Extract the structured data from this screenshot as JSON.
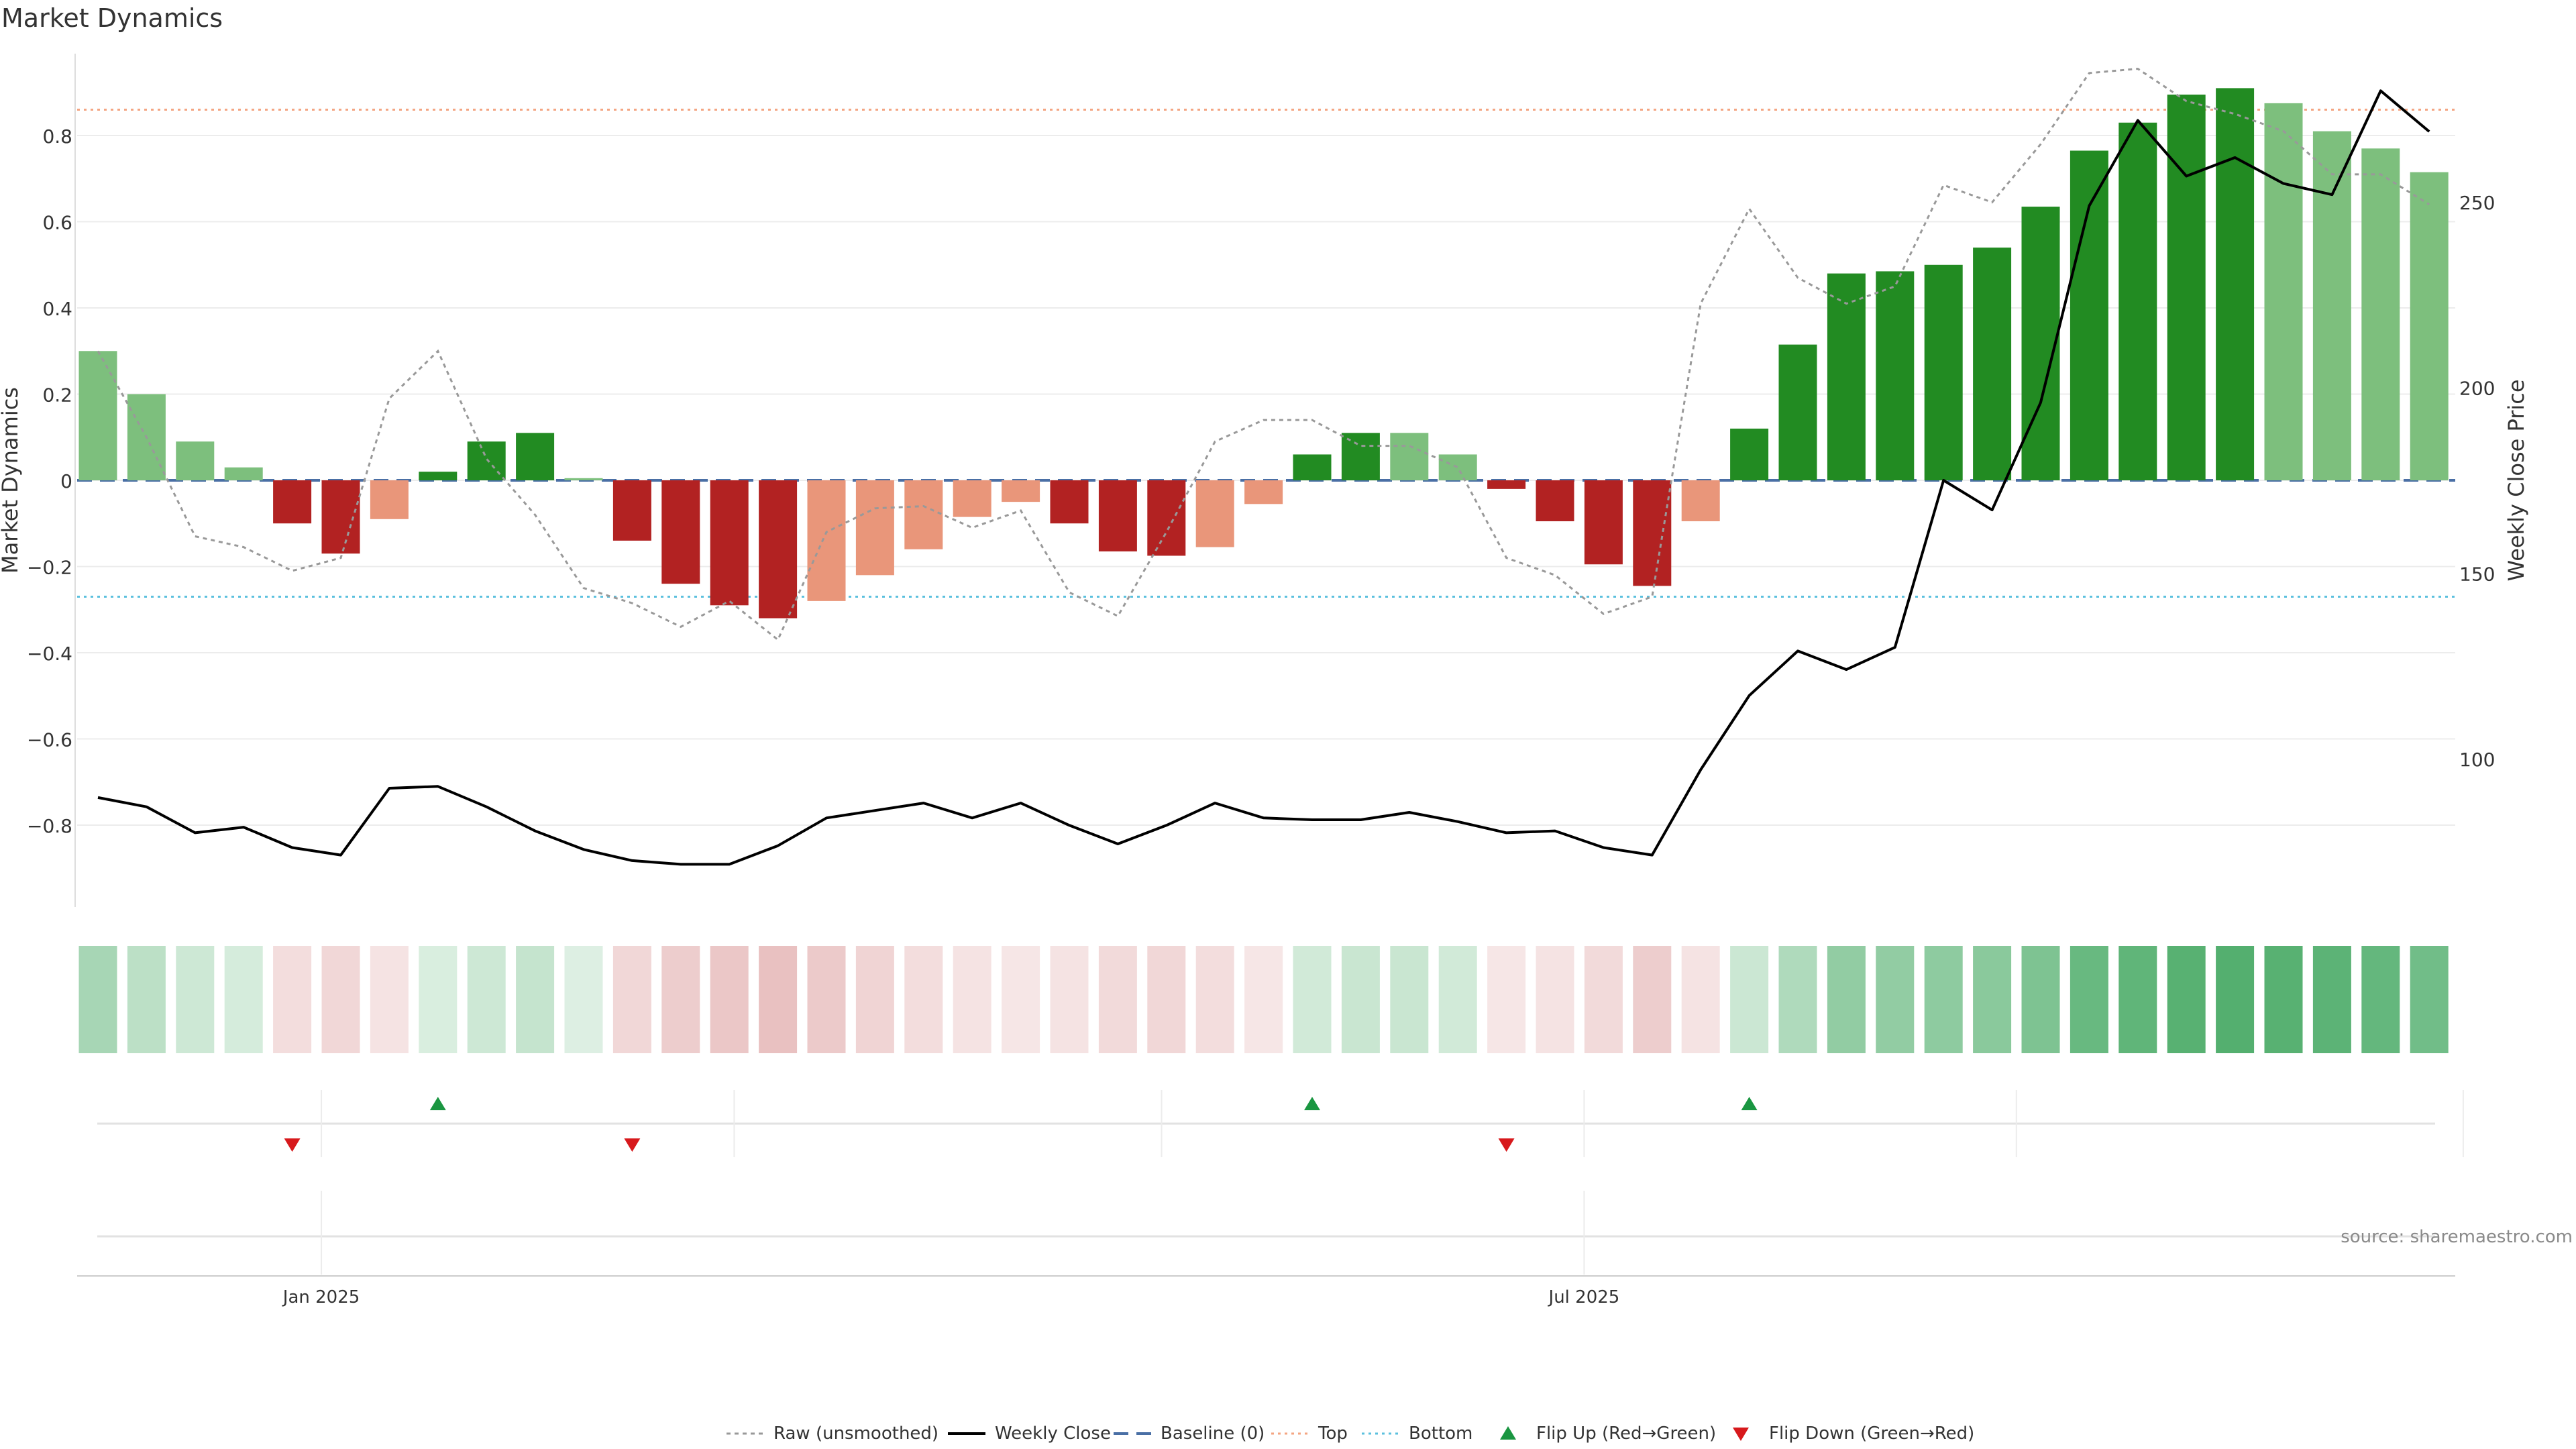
{
  "chart_data": {
    "type": "bar",
    "title": "Market Dynamics",
    "ylabel": "Market Dynamics",
    "y2label": "Weekly Close Price",
    "ylim": [
      -0.99,
      0.99
    ],
    "y2lim": [
      60,
      290
    ],
    "y_ticks": [
      -0.8,
      -0.6,
      -0.4,
      -0.2,
      0,
      0.2,
      0.4,
      0.6,
      0.8
    ],
    "y_tick_labels": [
      "−0.8",
      "−0.6",
      "−0.4",
      "−0.2",
      "0",
      "0.2",
      "0.4",
      "0.6",
      "0.8"
    ],
    "y2_ticks": [
      100,
      150,
      200,
      250
    ],
    "y2_tick_labels": [
      "100",
      "150",
      "200",
      "250"
    ],
    "x_tick_labels": [
      {
        "label": "Jan 2025",
        "week": 4.6
      },
      {
        "label": "Jul 2025",
        "week": 30.6
      }
    ],
    "x_minor_grid_weeks": [
      13.1,
      21.9,
      39.5,
      48.7
    ],
    "top_line": 0.86,
    "bottom_line": -0.27,
    "weeks": [
      0,
      1,
      2,
      3,
      4,
      5,
      6,
      7,
      8,
      9,
      10,
      11,
      12,
      13,
      14,
      15,
      16,
      17,
      18,
      19,
      20,
      21,
      22,
      23,
      24,
      25,
      26,
      27,
      28,
      29,
      30,
      31,
      32,
      33,
      34,
      35,
      36,
      37,
      38,
      39,
      40,
      41,
      42,
      43,
      44,
      45,
      46,
      47,
      48
    ],
    "smoothed": [
      0.3,
      0.2,
      0.09,
      0.03,
      -0.1,
      -0.17,
      -0.09,
      0.02,
      0.09,
      0.11,
      0.005,
      -0.14,
      -0.24,
      -0.29,
      -0.32,
      -0.28,
      -0.22,
      -0.16,
      -0.085,
      -0.05,
      -0.1,
      -0.165,
      -0.175,
      -0.155,
      -0.055,
      0.06,
      0.11,
      0.11,
      0.06,
      -0.02,
      -0.095,
      -0.195,
      -0.245,
      -0.095,
      0.12,
      0.315,
      0.48,
      0.485,
      0.5,
      0.54,
      0.635,
      0.765,
      0.83,
      0.895,
      0.91,
      0.875,
      0.81,
      0.77,
      0.715
    ],
    "raw": [
      0.3,
      0.1,
      -0.13,
      -0.155,
      -0.21,
      -0.18,
      0.19,
      0.3,
      0.05,
      -0.08,
      -0.25,
      -0.285,
      -0.34,
      -0.28,
      -0.37,
      -0.12,
      -0.065,
      -0.06,
      -0.11,
      -0.07,
      -0.26,
      -0.315,
      -0.12,
      0.09,
      0.14,
      0.14,
      0.08,
      0.08,
      0.03,
      -0.18,
      -0.22,
      -0.31,
      -0.27,
      0.41,
      0.63,
      0.47,
      0.41,
      0.45,
      0.685,
      0.645,
      0.78,
      0.945,
      0.955,
      0.88,
      0.85,
      0.81,
      0.71,
      0.71,
      0.64
    ],
    "weekly_close": [
      89.5,
      87,
      80,
      81.5,
      76,
      74,
      92,
      92.5,
      87,
      80.5,
      75.5,
      72.5,
      71.5,
      71.5,
      76.5,
      84,
      86,
      88,
      84,
      88,
      82,
      77,
      82,
      88,
      84,
      83.5,
      83.5,
      85.5,
      83,
      80,
      80.5,
      76,
      74,
      97,
      117,
      129,
      124,
      130,
      175,
      167,
      196,
      249,
      272,
      257,
      262,
      255,
      252,
      280,
      269
    ],
    "bar_fill": [
      "up-fading",
      "up-fading",
      "up-fading",
      "up-fading",
      "down-strong",
      "down-strong",
      "down-fading",
      "up-strong",
      "up-strong",
      "up-strong",
      "up-fading",
      "down-strong",
      "down-strong",
      "down-strong",
      "down-strong",
      "down-fading",
      "down-fading",
      "down-fading",
      "down-fading",
      "down-fading",
      "down-strong",
      "down-strong",
      "down-strong",
      "down-fading",
      "down-fading",
      "up-strong",
      "up-strong",
      "up-fading",
      "up-fading",
      "down-strong",
      "down-strong",
      "down-strong",
      "down-strong",
      "down-fading",
      "up-strong",
      "up-strong",
      "up-strong",
      "up-strong",
      "up-strong",
      "up-strong",
      "up-strong",
      "up-strong",
      "up-strong",
      "up-strong",
      "up-strong",
      "up-fading",
      "up-fading",
      "up-fading",
      "up-fading"
    ],
    "heat_intensity": [
      0.42,
      0.32,
      0.24,
      0.2,
      0.22,
      0.26,
      0.18,
      0.18,
      0.24,
      0.28,
      0.16,
      0.26,
      0.32,
      0.36,
      0.4,
      0.34,
      0.28,
      0.22,
      0.18,
      0.16,
      0.18,
      0.24,
      0.26,
      0.22,
      0.16,
      0.22,
      0.26,
      0.26,
      0.22,
      0.16,
      0.18,
      0.24,
      0.32,
      0.18,
      0.25,
      0.38,
      0.52,
      0.52,
      0.54,
      0.56,
      0.62,
      0.72,
      0.76,
      0.8,
      0.82,
      0.8,
      0.78,
      0.74,
      0.68
    ],
    "flips_up": [
      7,
      25,
      34
    ],
    "flips_down": [
      4,
      11,
      29
    ],
    "colors": {
      "up_strong": "#228b22",
      "up_fading": "#7dbf7d",
      "down_strong": "#b22222",
      "down_fading": "#e9967a",
      "heat_up": "#2e9e4f",
      "heat_down": "#c86464",
      "raw_line": "#999999",
      "close_line": "#000000",
      "baseline": "#4a6fa5",
      "top_line": "#f4a582",
      "bottom_line": "#5bc0de",
      "flip_up": "#1a9641",
      "flip_down": "#d7191c"
    },
    "legend": {
      "position": "bottom-center",
      "entries": [
        "Raw (unsmoothed)",
        "Weekly Close",
        "Baseline (0)",
        "Top",
        "Bottom",
        "Flip Up (Red→Green)",
        "Flip Down (Green→Red)"
      ]
    },
    "source": "source: sharemaestro.com"
  }
}
